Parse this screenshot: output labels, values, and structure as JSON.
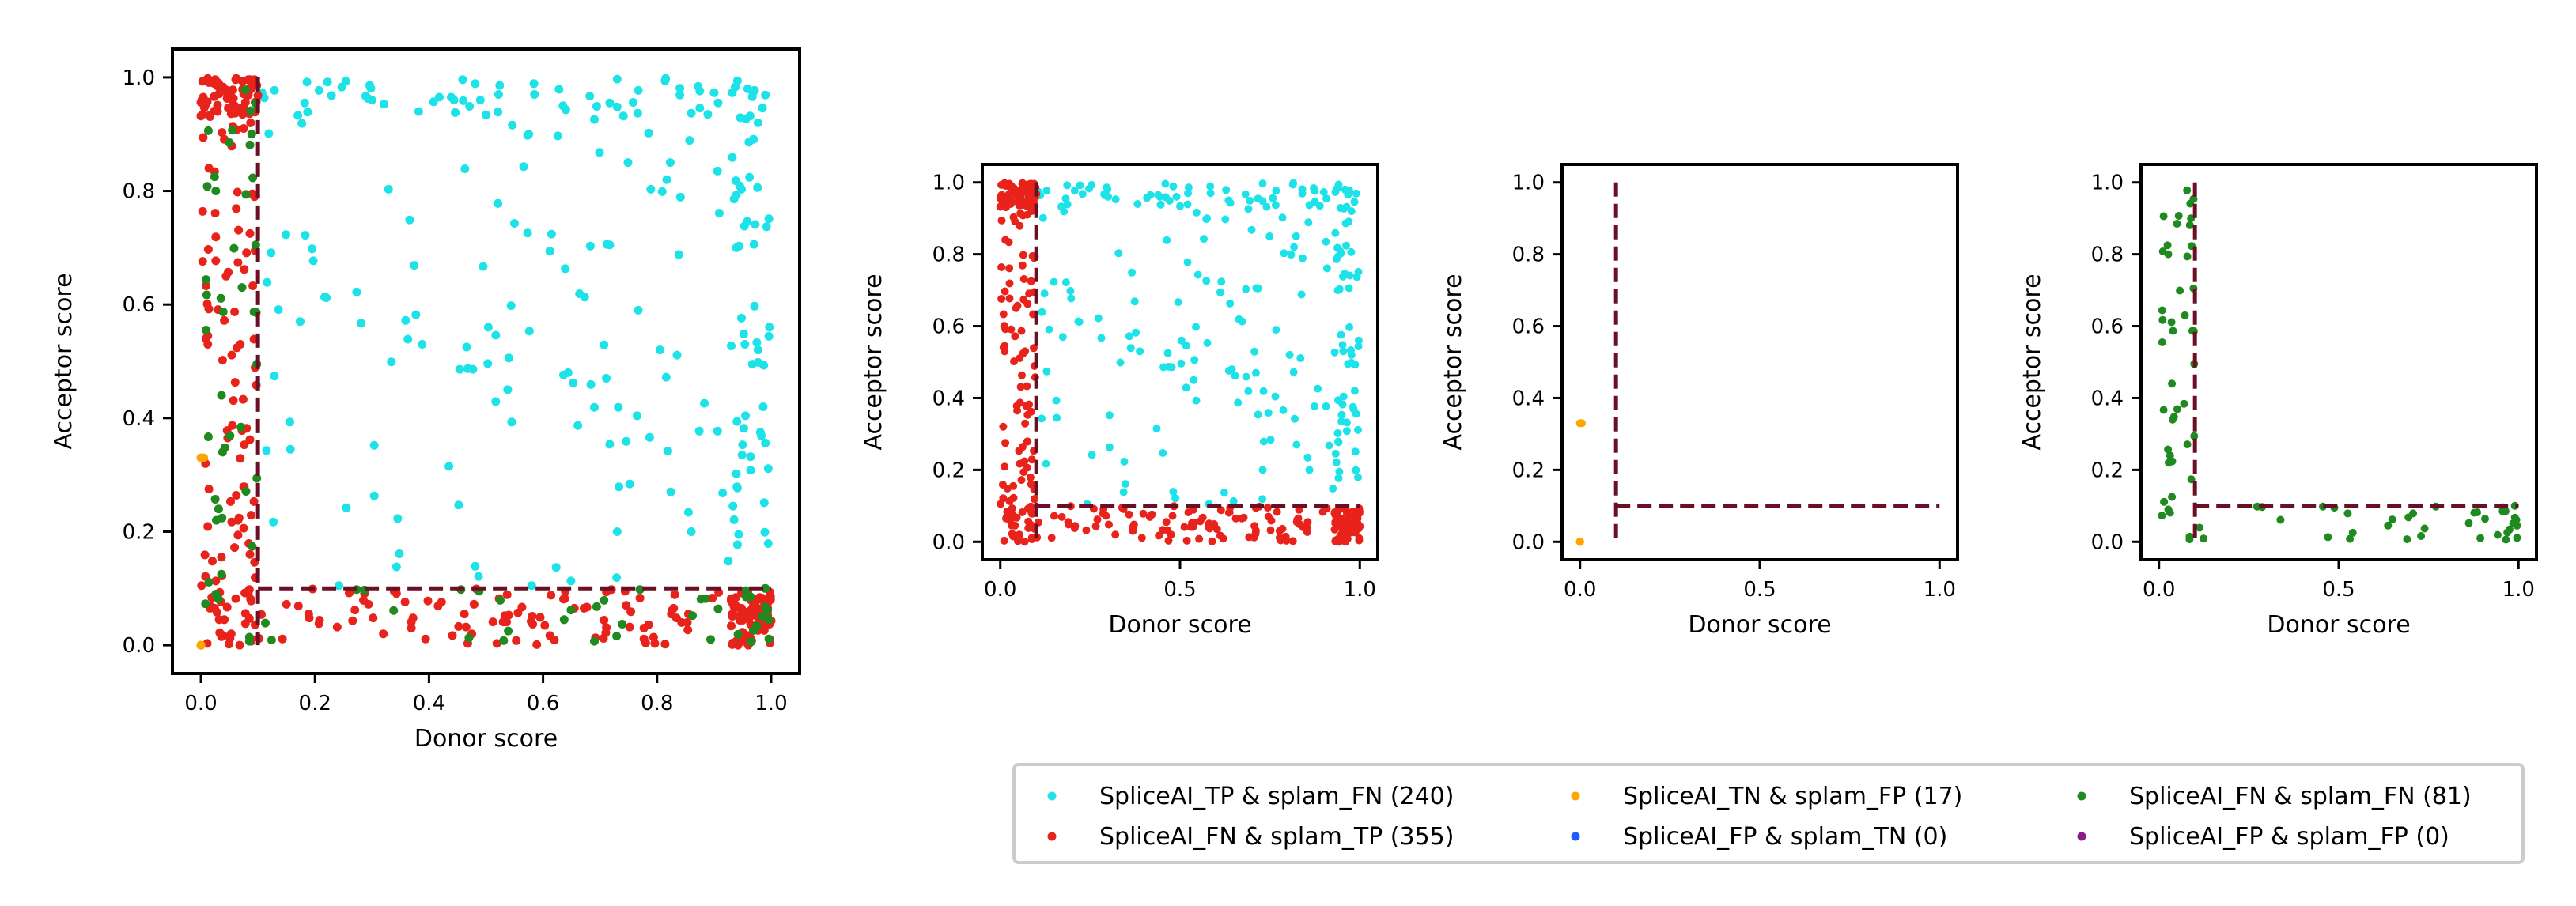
{
  "chart_data": [
    {
      "type": "scatter",
      "panel": "all",
      "xlabel": "Donor score",
      "ylabel": "Acceptor score",
      "xlim": [
        -0.05,
        1.05
      ],
      "ylim": [
        -0.05,
        1.05
      ],
      "xticks": [
        "0.0",
        "0.2",
        "0.4",
        "0.6",
        "0.8",
        "1.0"
      ],
      "yticks": [
        "0.0",
        "0.2",
        "0.4",
        "0.6",
        "0.8",
        "1.0"
      ],
      "threshold": 0.1,
      "series": [
        "SpliceAI_TP & splam_FN (240)",
        "SpliceAI_FN & splam_TP (355)",
        "SpliceAI_TN & splam_FP (17)",
        "SpliceAI_FN & splam_FN (81)"
      ]
    },
    {
      "type": "scatter",
      "panel": "tp_fn_and_fn_tp",
      "xlabel": "Donor score",
      "ylabel": "Acceptor score",
      "xlim": [
        -0.05,
        1.05
      ],
      "ylim": [
        -0.05,
        1.05
      ],
      "xticks": [
        "0.0",
        "0.5",
        "1.0"
      ],
      "yticks": [
        "0.0",
        "0.2",
        "0.4",
        "0.6",
        "0.8",
        "1.0"
      ],
      "threshold": 0.1,
      "series": [
        "SpliceAI_TP & splam_FN (240)",
        "SpliceAI_FN & splam_TP (355)"
      ]
    },
    {
      "type": "scatter",
      "panel": "tn_fp",
      "xlabel": "Donor score",
      "ylabel": "Acceptor score",
      "xlim": [
        -0.05,
        1.05
      ],
      "ylim": [
        -0.05,
        1.05
      ],
      "xticks": [
        "0.0",
        "0.5",
        "1.0"
      ],
      "yticks": [
        "0.0",
        "0.2",
        "0.4",
        "0.6",
        "0.8",
        "1.0"
      ],
      "threshold": 0.1,
      "series": [
        "SpliceAI_TN & splam_FP (17)"
      ]
    },
    {
      "type": "scatter",
      "panel": "fn_fn",
      "xlabel": "Donor score",
      "ylabel": "Acceptor score",
      "xlim": [
        -0.05,
        1.05
      ],
      "ylim": [
        -0.05,
        1.05
      ],
      "xticks": [
        "0.0",
        "0.5",
        "1.0"
      ],
      "yticks": [
        "0.0",
        "0.2",
        "0.4",
        "0.6",
        "0.8",
        "1.0"
      ],
      "threshold": 0.1,
      "series": [
        "SpliceAI_FN & splam_FN (81)"
      ]
    }
  ],
  "legend": [
    {
      "label": "SpliceAI_TP & splam_FN (240)",
      "color": "#1de3e8"
    },
    {
      "label": "SpliceAI_FN & splam_TP (355)",
      "color": "#e8231b"
    },
    {
      "label": "SpliceAI_TN & splam_FP (17)",
      "color": "#ffa500"
    },
    {
      "label": "SpliceAI_FP & splam_TN (0)",
      "color": "#1f5bff"
    },
    {
      "label": "SpliceAI_FN & splam_FN (81)",
      "color": "#1f8a1f"
    },
    {
      "label": "SpliceAI_FP & splam_FP (0)",
      "color": "#8b1a8b"
    }
  ],
  "colors": {
    "tp_fn": "#1de3e8",
    "fn_tp": "#e8231b",
    "tn_fp": "#ffa500",
    "fp_tn": "#1f5bff",
    "fn_fn": "#1f8a1f",
    "fp_fp": "#8b1a8b",
    "threshold_line": "#6b0f24"
  }
}
